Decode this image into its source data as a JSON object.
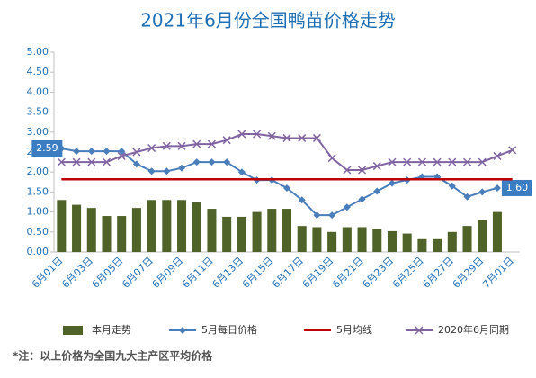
{
  "chart_data": {
    "type": "combo",
    "title": "2021年6月份全国鸭苗价格走势",
    "footnote": "*注：以上价格为全国九大主产区平均价格",
    "categories": [
      "6月01日",
      null,
      "6月03日",
      null,
      "6月05日",
      null,
      "6月07日",
      null,
      "6月09日",
      null,
      "6月11日",
      null,
      "6月13日",
      null,
      "6月15日",
      null,
      "6月17日",
      null,
      "6月19日",
      null,
      "6月21日",
      null,
      "6月23日",
      null,
      "6月25日",
      null,
      "6月27日",
      null,
      "6月29日",
      null,
      "7月01日"
    ],
    "ylim": [
      0,
      5
    ],
    "yticks": [
      {
        "value": 0,
        "label": "0.00"
      },
      {
        "value": 0.5,
        "label": "0.50"
      },
      {
        "value": 1,
        "label": "1.00"
      },
      {
        "value": 1.5,
        "label": "1.50"
      },
      {
        "value": 2,
        "label": "2.00"
      },
      {
        "value": 2.5,
        "label": "2.50"
      },
      {
        "value": 3,
        "label": "3.00"
      },
      {
        "value": 3.5,
        "label": "3.50"
      },
      {
        "value": 4,
        "label": "4.00"
      },
      {
        "value": 4.5,
        "label": "4.50"
      },
      {
        "value": 5,
        "label": "5.00"
      }
    ],
    "grid": false,
    "legend": "bottom",
    "series": [
      {
        "name": "本月走势",
        "type": "bar",
        "color": "#4f6228",
        "marker": "none",
        "values": [
          1.3,
          1.18,
          1.1,
          0.9,
          0.9,
          1.1,
          1.3,
          1.3,
          1.3,
          1.25,
          1.08,
          0.88,
          0.88,
          1.0,
          1.08,
          1.08,
          0.65,
          0.62,
          0.5,
          0.62,
          0.62,
          0.58,
          0.52,
          0.46,
          0.32,
          0.32,
          0.5,
          0.65,
          0.8,
          1.0,
          null
        ]
      },
      {
        "name": "5月每日价格",
        "type": "line",
        "color": "#4a7ebb",
        "marker": "diamond",
        "values": [
          2.59,
          2.52,
          2.52,
          2.52,
          2.52,
          2.2,
          2.02,
          2.02,
          2.1,
          2.25,
          2.25,
          2.25,
          2.0,
          1.8,
          1.8,
          1.6,
          1.3,
          0.92,
          0.92,
          1.12,
          1.32,
          1.52,
          1.72,
          1.8,
          1.88,
          1.88,
          1.65,
          1.38,
          1.5,
          1.6,
          null
        ],
        "value_labels": [
          "2.59",
          null,
          null,
          null,
          null,
          null,
          null,
          null,
          null,
          null,
          null,
          null,
          null,
          null,
          null,
          null,
          null,
          null,
          null,
          null,
          null,
          null,
          null,
          null,
          null,
          null,
          null,
          null,
          null,
          "1.60",
          null
        ]
      },
      {
        "name": "5月均线",
        "type": "line",
        "color": "#c00000",
        "marker": "none",
        "values": [
          1.82,
          1.82,
          1.82,
          1.82,
          1.82,
          1.82,
          1.82,
          1.82,
          1.82,
          1.82,
          1.82,
          1.82,
          1.82,
          1.82,
          1.82,
          1.82,
          1.82,
          1.82,
          1.82,
          1.82,
          1.82,
          1.82,
          1.82,
          1.82,
          1.82,
          1.82,
          1.82,
          1.82,
          1.82,
          1.82,
          1.82
        ]
      },
      {
        "name": "2020年6月同期",
        "type": "line",
        "color": "#8064a2",
        "marker": "x",
        "values": [
          2.25,
          2.25,
          2.25,
          2.25,
          2.4,
          2.5,
          2.6,
          2.65,
          2.65,
          2.7,
          2.7,
          2.8,
          2.95,
          2.95,
          2.9,
          2.85,
          2.85,
          2.85,
          2.35,
          2.05,
          2.05,
          2.15,
          2.25,
          2.25,
          2.25,
          2.25,
          2.25,
          2.25,
          2.25,
          2.4,
          2.55
        ]
      }
    ]
  }
}
